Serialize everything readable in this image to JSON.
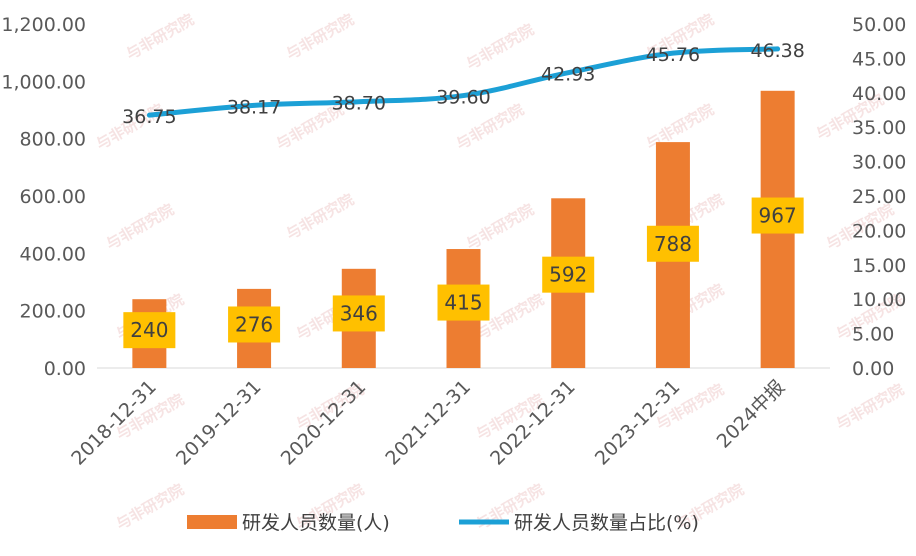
{
  "chart_data": {
    "type": "bar+line",
    "categories": [
      "2018-12-31",
      "2019-12-31",
      "2020-12-31",
      "2021-12-31",
      "2022-12-31",
      "2023-12-31",
      "2024中报"
    ],
    "series": [
      {
        "name": "研发人员数量(人)",
        "type": "bar",
        "axis": "left",
        "color": "#ED7D31",
        "values": [
          240,
          276,
          346,
          415,
          592,
          788,
          967
        ],
        "labels": [
          "240",
          "276",
          "346",
          "415",
          "592",
          "788",
          "967"
        ]
      },
      {
        "name": "研发人员数量占比(%)",
        "type": "line",
        "axis": "right",
        "color": "#1CA0D6",
        "values": [
          36.75,
          38.17,
          38.7,
          39.6,
          42.93,
          45.76,
          46.38
        ],
        "labels": [
          "36.75",
          "38.17",
          "38.70",
          "39.60",
          "42.93",
          "45.76",
          "46.38"
        ]
      }
    ],
    "left_axis": {
      "min": 0,
      "max": 1200,
      "step": 200,
      "tick_labels": [
        "0.00",
        "200.00",
        "400.00",
        "600.00",
        "800.00",
        "1,000.00",
        "1,200.00"
      ]
    },
    "right_axis": {
      "min": 0,
      "max": 50,
      "step": 5,
      "tick_labels": [
        "0.00",
        "5.00",
        "10.00",
        "15.00",
        "20.00",
        "25.00",
        "30.00",
        "35.00",
        "40.00",
        "45.00",
        "50.00"
      ]
    },
    "label_box_color": "#FFC000",
    "grid": false,
    "legend_position": "bottom",
    "watermark": "与非研究院"
  }
}
